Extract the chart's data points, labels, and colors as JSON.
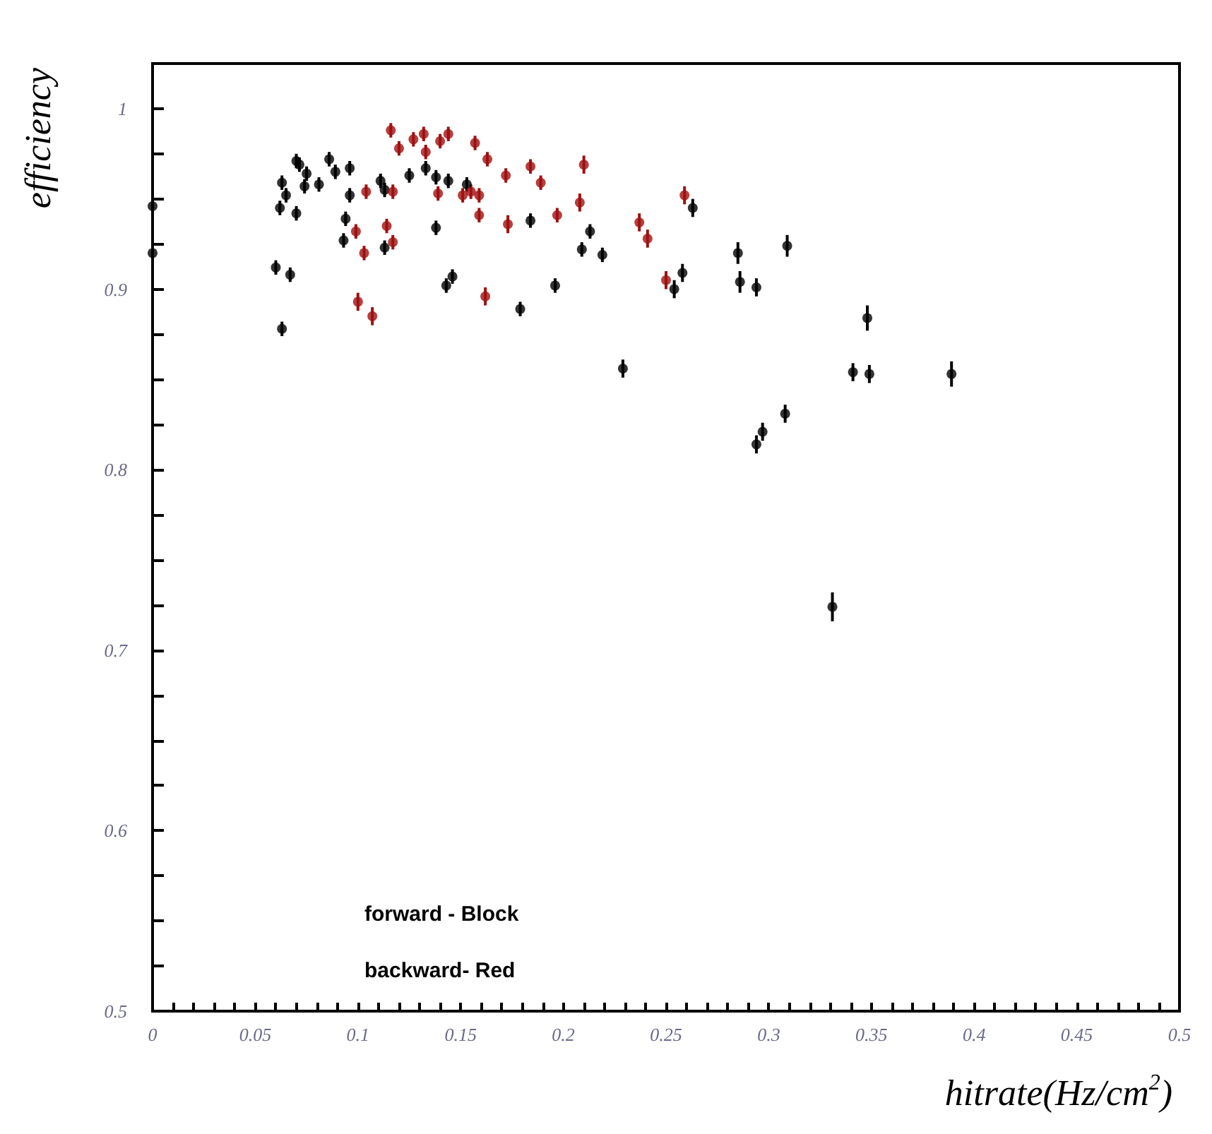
{
  "chart_data": {
    "type": "scatter",
    "xlabel": "hitrate(Hz/cm$^{2}$)",
    "ylabel": "efficiency",
    "xlim": [
      0,
      0.5
    ],
    "ylim": [
      0.5,
      1.025
    ],
    "xticks": [
      0,
      {
        "value": 0.01,
        "label": null
      },
      {
        "value": 0.02,
        "label": null
      },
      {
        "value": 0.03,
        "label": null
      },
      {
        "value": 0.04,
        "label": null
      },
      0.05,
      {
        "value": 0.06,
        "label": null
      },
      {
        "value": 0.07,
        "label": null
      },
      {
        "value": 0.08,
        "label": null
      },
      {
        "value": 0.09,
        "label": null
      },
      0.1,
      {
        "value": 0.11,
        "label": null
      },
      {
        "value": 0.12,
        "label": null
      },
      {
        "value": 0.13,
        "label": null
      },
      {
        "value": 0.14,
        "label": null
      },
      0.15,
      {
        "value": 0.16,
        "label": null
      },
      {
        "value": 0.17,
        "label": null
      },
      {
        "value": 0.18,
        "label": null
      },
      {
        "value": 0.19,
        "label": null
      },
      0.2,
      {
        "value": 0.21,
        "label": null
      },
      {
        "value": 0.22,
        "label": null
      },
      {
        "value": 0.23,
        "label": null
      },
      {
        "value": 0.24,
        "label": null
      },
      0.25,
      {
        "value": 0.26,
        "label": null
      },
      {
        "value": 0.27,
        "label": null
      },
      {
        "value": 0.28,
        "label": null
      },
      {
        "value": 0.29,
        "label": null
      },
      0.3,
      {
        "value": 0.31,
        "label": null
      },
      {
        "value": 0.32,
        "label": null
      },
      {
        "value": 0.33,
        "label": null
      },
      {
        "value": 0.34,
        "label": null
      },
      0.35,
      {
        "value": 0.36,
        "label": null
      },
      {
        "value": 0.37,
        "label": null
      },
      {
        "value": 0.38,
        "label": null
      },
      {
        "value": 0.39,
        "label": null
      },
      0.4,
      {
        "value": 0.41,
        "label": null
      },
      {
        "value": 0.42,
        "label": null
      },
      {
        "value": 0.43,
        "label": null
      },
      {
        "value": 0.44,
        "label": null
      },
      0.45,
      {
        "value": 0.46,
        "label": null
      },
      {
        "value": 0.47,
        "label": null
      },
      {
        "value": 0.48,
        "label": null
      },
      {
        "value": 0.49,
        "label": null
      },
      0.5
    ],
    "yticks": [
      0.5,
      {
        "value": 0.525,
        "label": null
      },
      {
        "value": 0.55,
        "label": null
      },
      {
        "value": 0.575,
        "label": null
      },
      0.6,
      {
        "value": 0.625,
        "label": null
      },
      {
        "value": 0.65,
        "label": null
      },
      {
        "value": 0.675,
        "label": null
      },
      0.7,
      {
        "value": 0.725,
        "label": null
      },
      {
        "value": 0.75,
        "label": null
      },
      {
        "value": 0.775,
        "label": null
      },
      0.8,
      {
        "value": 0.825,
        "label": null
      },
      {
        "value": 0.85,
        "label": null
      },
      {
        "value": 0.875,
        "label": null
      },
      0.9,
      {
        "value": 0.925,
        "label": null
      },
      {
        "value": 0.95,
        "label": null
      },
      {
        "value": 0.975,
        "label": null
      },
      1,
      {
        "value": 1.025,
        "label": null
      }
    ],
    "grid": false,
    "marker": "circle",
    "annotations": [
      "forward - Block",
      "backward- Red"
    ],
    "series": [
      {
        "color": "#000000",
        "x": [
          0,
          0,
          0.063,
          0.07,
          0.0715,
          0.075,
          0.065,
          0.062,
          0.07,
          0.074,
          0.081,
          0.086,
          0.089,
          0.096,
          0.096,
          0.094,
          0.093,
          0.06,
          0.067,
          0.063,
          0.111,
          0.113,
          0.113,
          0.133,
          0.138,
          0.146,
          0.143,
          0.138,
          0.144,
          0.153,
          0.125,
          0.184,
          0.213,
          0.209,
          0.219,
          0.196,
          0.179,
          0.263,
          0.254,
          0.258,
          0.285,
          0.286,
          0.294,
          0.309,
          0.229,
          0.348,
          0.341,
          0.349,
          0.389,
          0.308,
          0.297,
          0.294,
          0.331
        ],
        "values": [
          0.946,
          0.92,
          0.959,
          0.971,
          0.969,
          0.964,
          0.952,
          0.945,
          0.942,
          0.957,
          0.958,
          0.972,
          0.965,
          0.967,
          0.952,
          0.939,
          0.927,
          0.912,
          0.908,
          0.878,
          0.96,
          0.955,
          0.923,
          0.967,
          0.934,
          0.907,
          0.902,
          0.962,
          0.96,
          0.958,
          0.963,
          0.938,
          0.932,
          0.922,
          0.919,
          0.902,
          0.889,
          0.945,
          0.9,
          0.909,
          0.92,
          0.904,
          0.901,
          0.924,
          0.856,
          0.884,
          0.854,
          0.853,
          0.853,
          0.831,
          0.821,
          0.814,
          0.724
        ],
        "errors": [
          0.004,
          0.004,
          0.004,
          0.004,
          0.004,
          0.004,
          0.004,
          0.004,
          0.004,
          0.004,
          0.004,
          0.004,
          0.004,
          0.004,
          0.004,
          0.004,
          0.004,
          0.004,
          0.004,
          0.004,
          0.004,
          0.004,
          0.004,
          0.004,
          0.004,
          0.004,
          0.004,
          0.004,
          0.004,
          0.004,
          0.004,
          0.004,
          0.004,
          0.004,
          0.004,
          0.004,
          0.004,
          0.005,
          0.005,
          0.005,
          0.006,
          0.006,
          0.005,
          0.006,
          0.005,
          0.007,
          0.005,
          0.005,
          0.007,
          0.005,
          0.005,
          0.005,
          0.008
        ]
      },
      {
        "color": "#a01010",
        "x": [
          0.116,
          0.12,
          0.127,
          0.132,
          0.133,
          0.14,
          0.144,
          0.157,
          0.163,
          0.104,
          0.117,
          0.139,
          0.151,
          0.155,
          0.159,
          0.159,
          0.099,
          0.114,
          0.117,
          0.103,
          0.1,
          0.107,
          0.162,
          0.172,
          0.184,
          0.189,
          0.173,
          0.197,
          0.21,
          0.208,
          0.237,
          0.241,
          0.259,
          0.25
        ],
        "values": [
          0.988,
          0.978,
          0.983,
          0.986,
          0.976,
          0.982,
          0.986,
          0.981,
          0.972,
          0.954,
          0.954,
          0.953,
          0.952,
          0.954,
          0.952,
          0.941,
          0.932,
          0.935,
          0.926,
          0.92,
          0.893,
          0.885,
          0.896,
          0.963,
          0.968,
          0.959,
          0.936,
          0.941,
          0.969,
          0.948,
          0.937,
          0.928,
          0.952,
          0.905
        ],
        "errors": [
          0.004,
          0.004,
          0.004,
          0.004,
          0.004,
          0.004,
          0.004,
          0.004,
          0.004,
          0.004,
          0.004,
          0.004,
          0.004,
          0.004,
          0.004,
          0.004,
          0.004,
          0.004,
          0.004,
          0.004,
          0.005,
          0.005,
          0.005,
          0.004,
          0.004,
          0.004,
          0.005,
          0.004,
          0.005,
          0.005,
          0.005,
          0.005,
          0.005,
          0.005
        ]
      }
    ]
  }
}
